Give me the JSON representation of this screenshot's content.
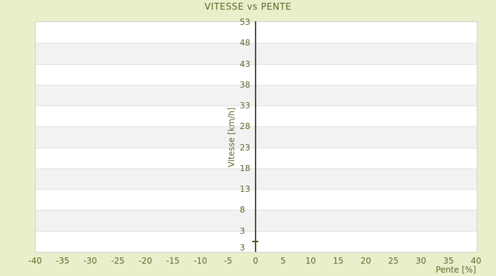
{
  "title": "VITESSE vs PENTE",
  "colors": {
    "background": "#e9eecb",
    "text_olive": "#63682c",
    "axis_line": "#4c511e",
    "band_light": "#ffffff",
    "band_dark": "#f2f2f3",
    "band_separator": "#e2e2e4",
    "plot_border": "#d4d4d4"
  },
  "chart_data": {
    "type": "scatter",
    "title": "VITESSE vs PENTE",
    "xlabel": "Pente [%]",
    "ylabel": "Vitesse [km/h]",
    "x_ticks": [
      -40,
      -35,
      -30,
      -25,
      -20,
      -15,
      -10,
      -5,
      0,
      5,
      10,
      15,
      20,
      25,
      30,
      35,
      40
    ],
    "y_ticks": [
      53,
      48,
      43,
      38,
      33,
      28,
      23,
      18,
      13,
      8,
      3
    ],
    "y_axis_end_label": "3",
    "xlim": [
      -40,
      40
    ],
    "ylim": [
      -2,
      53
    ],
    "series": [],
    "grid": "alternating-horizontal-bands",
    "legend": "none",
    "notes": "Plot contains no data points; y-axis drawn vertically at x=0 with a small tick at y=0."
  }
}
